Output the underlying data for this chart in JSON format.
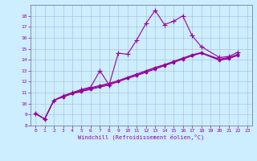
{
  "xlabel": "Windchill (Refroidissement éolien,°C)",
  "background_color": "#cceeff",
  "grid_color": "#aabbcc",
  "line_color": "#990099",
  "spine_color": "#666699",
  "xlim": [
    -0.5,
    23.5
  ],
  "ylim": [
    8,
    19
  ],
  "yticks": [
    8,
    9,
    10,
    11,
    12,
    13,
    14,
    15,
    16,
    17,
    18
  ],
  "xticks": [
    0,
    1,
    2,
    3,
    4,
    5,
    6,
    7,
    8,
    9,
    10,
    11,
    12,
    13,
    14,
    15,
    16,
    17,
    18,
    19,
    20,
    21,
    22,
    23
  ],
  "series": [
    {
      "x": [
        0,
        1,
        2,
        3,
        4,
        5,
        6,
        7,
        8,
        9,
        10,
        11,
        12,
        13,
        14,
        15,
        16,
        17,
        18,
        20,
        21,
        22
      ],
      "y": [
        9.1,
        8.6,
        10.3,
        10.7,
        11.0,
        11.3,
        11.5,
        13.0,
        11.7,
        14.6,
        14.5,
        15.8,
        17.3,
        18.5,
        17.2,
        17.5,
        18.0,
        16.2,
        15.2,
        14.2,
        14.3,
        14.7
      ],
      "marker": "+",
      "markersize": 4,
      "linewidth": 0.8
    },
    {
      "x": [
        0,
        1,
        2,
        3,
        4,
        5,
        6,
        7,
        8,
        9,
        10,
        11,
        12,
        13,
        14,
        15,
        16,
        17,
        18,
        20,
        21,
        22
      ],
      "y": [
        9.1,
        8.6,
        10.3,
        10.7,
        11.0,
        11.2,
        11.45,
        11.65,
        11.85,
        12.1,
        12.4,
        12.7,
        13.0,
        13.3,
        13.55,
        13.85,
        14.15,
        14.45,
        14.65,
        14.05,
        14.2,
        14.5
      ],
      "marker": "D",
      "markersize": 1.5,
      "linewidth": 0.8
    },
    {
      "x": [
        0,
        1,
        2,
        3,
        4,
        5,
        6,
        7,
        8,
        9,
        10,
        11,
        12,
        13,
        14,
        15,
        16,
        17,
        18,
        20,
        21,
        22
      ],
      "y": [
        9.1,
        8.6,
        10.3,
        10.6,
        10.9,
        11.1,
        11.3,
        11.5,
        11.7,
        12.0,
        12.3,
        12.55,
        12.85,
        13.15,
        13.45,
        13.75,
        14.05,
        14.35,
        14.6,
        13.95,
        14.1,
        14.4
      ],
      "marker": "D",
      "markersize": 1.5,
      "linewidth": 0.8
    },
    {
      "x": [
        0,
        1,
        2,
        3,
        4,
        5,
        6,
        7,
        8,
        9,
        10,
        11,
        12,
        13,
        14,
        15,
        16,
        17,
        18,
        20,
        21,
        22
      ],
      "y": [
        9.1,
        8.6,
        10.3,
        10.65,
        10.95,
        11.15,
        11.38,
        11.58,
        11.78,
        12.05,
        12.35,
        12.62,
        12.92,
        13.22,
        13.5,
        13.8,
        14.1,
        14.4,
        14.62,
        14.0,
        14.15,
        14.45
      ],
      "marker": "D",
      "markersize": 1.5,
      "linewidth": 0.8
    }
  ]
}
